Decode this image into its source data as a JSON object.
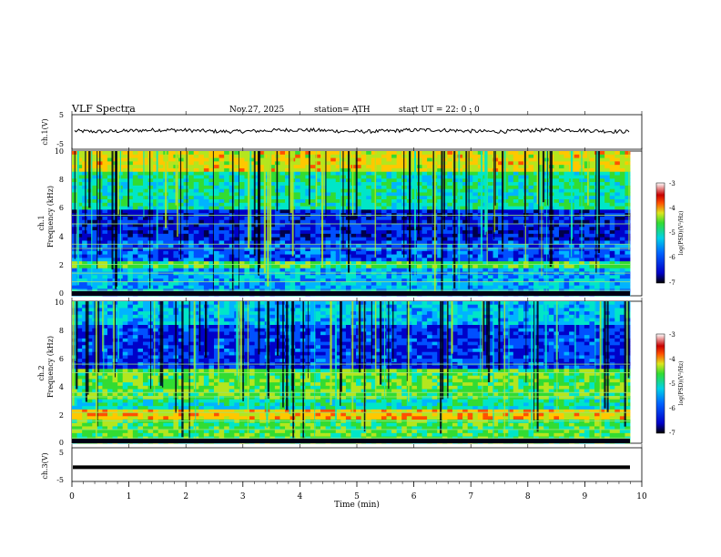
{
  "header": {
    "title": "VLF  Spectra",
    "date": "Nov.27, 2025",
    "station": "station= ATH",
    "start_ut": "start  UT  =    22: 0   : 0"
  },
  "chart_data": [
    {
      "type": "line",
      "title": "ch.1(V)",
      "ylabel": "ch.1(V)",
      "ylim": [
        -5,
        5
      ],
      "yticks": [
        "5",
        "-5"
      ],
      "xlim": [
        0,
        10
      ],
      "description_of_series": "broadband waveform roughly between -0.3 and 1.5 V"
    },
    {
      "type": "heatmap",
      "panel": "ch.1 spectrogram",
      "ylabel_line1": "ch.1",
      "ylabel_line2": "Frequency  (kHz)",
      "ylim": [
        0,
        10
      ],
      "yticks": [
        "0",
        "2",
        "4",
        "6",
        "8",
        "10"
      ],
      "xlim": [
        0,
        9.8
      ],
      "colorbar": {
        "label": "log(PSD)(V²/Hz)",
        "range": [
          -7,
          -3
        ],
        "ticks": [
          "-3",
          "-4",
          "-5",
          "-6",
          "-7"
        ]
      }
    },
    {
      "type": "heatmap",
      "panel": "ch.2 spectrogram",
      "ylabel_line1": "ch.2",
      "ylabel_line2": "Frequency  (kHz)",
      "ylim": [
        0,
        10
      ],
      "yticks": [
        "0",
        "2",
        "4",
        "6",
        "8",
        "10"
      ],
      "xlim": [
        0,
        9.8
      ],
      "colorbar": {
        "label": "log(PSD)(V²/Hz)",
        "range": [
          -7,
          -3
        ],
        "ticks": [
          "-3",
          "-4",
          "-5",
          "-6",
          "-7"
        ]
      }
    },
    {
      "type": "line",
      "title": "ch.3(V)",
      "ylabel": "ch.3(V)",
      "ylim": [
        -5,
        5
      ],
      "yticks": [
        "5",
        "-5"
      ],
      "xlim": [
        0,
        10
      ],
      "description_of_series": "flat thick trace near -1.2 V"
    }
  ],
  "xaxis": {
    "label": "Time  (min)",
    "ticks": [
      "0",
      "1",
      "2",
      "3",
      "4",
      "5",
      "6",
      "7",
      "8",
      "9",
      "10"
    ],
    "range": [
      0,
      10
    ]
  },
  "colors": {
    "colormap": [
      "#00004a",
      "#0000c8",
      "#0050ff",
      "#00b4ff",
      "#00e6c8",
      "#32dc32",
      "#b4e61e",
      "#ffc800",
      "#ff5000",
      "#c80000",
      "#ff9696",
      "#ffffff"
    ]
  }
}
